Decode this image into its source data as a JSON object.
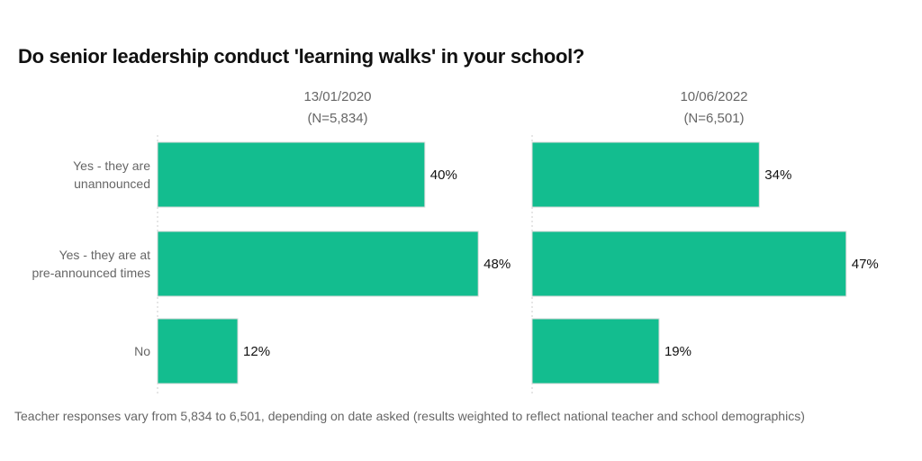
{
  "chart_data": {
    "type": "bar",
    "orientation": "horizontal",
    "title": "Do senior leadership conduct 'learning walks' in your school?",
    "categories": [
      "Yes - they are unannounced",
      "Yes - they are at pre-announced times",
      "No"
    ],
    "category_lines": [
      [
        "Yes - they are",
        "unannounced"
      ],
      [
        "Yes - they are at",
        "pre-announced times"
      ],
      [
        "No"
      ]
    ],
    "panels": [
      {
        "date": "13/01/2020",
        "n": "(N=5,834)",
        "values": [
          40,
          48,
          12
        ],
        "labels": [
          "40%",
          "48%",
          "12%"
        ]
      },
      {
        "date": "10/06/2022",
        "n": "(N=6,501)",
        "values": [
          34,
          47,
          19
        ],
        "labels": [
          "34%",
          "47%",
          "19%"
        ]
      }
    ],
    "unit": "%",
    "bar_color": "#13bd8f",
    "grid": false,
    "footnote": "Teacher responses vary from 5,834 to 6,501, depending on date asked (results weighted to reflect national teacher and school demographics)"
  }
}
